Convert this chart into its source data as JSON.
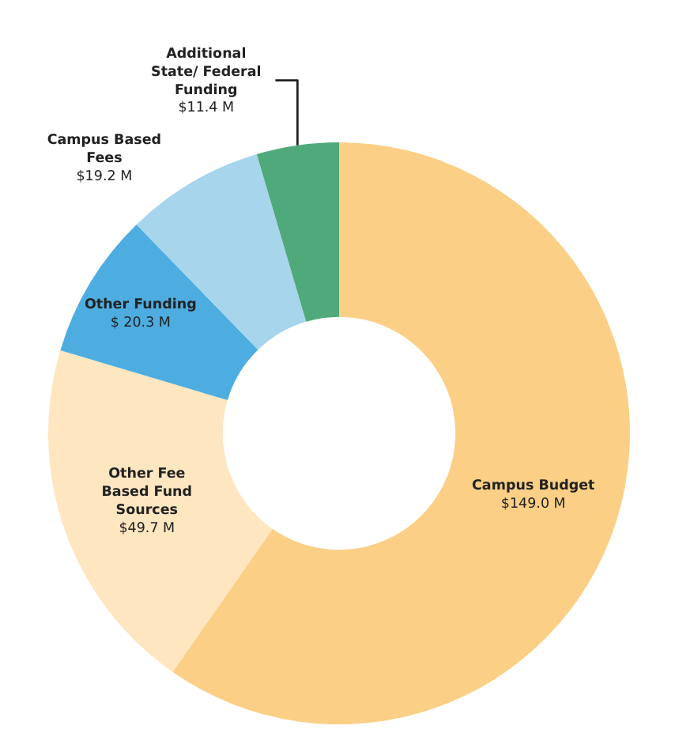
{
  "chart_data": {
    "type": "donut",
    "categories": [
      "Campus Budget",
      "Other Fee Based Fund Sources",
      "Other Funding",
      "Campus Based Fees",
      "Additional State/ Federal Funding"
    ],
    "values": [
      149.0,
      49.7,
      20.3,
      19.2,
      11.4
    ],
    "value_labels": [
      "$149.0 M",
      "$49.7 M",
      "$ 20.3 M",
      "$19.2 M",
      "$11.4 M"
    ],
    "colors": [
      "#fbcf86",
      "#fde6c0",
      "#4eade0",
      "#a6d5ec",
      "#4fa97a"
    ],
    "legend": false
  }
}
